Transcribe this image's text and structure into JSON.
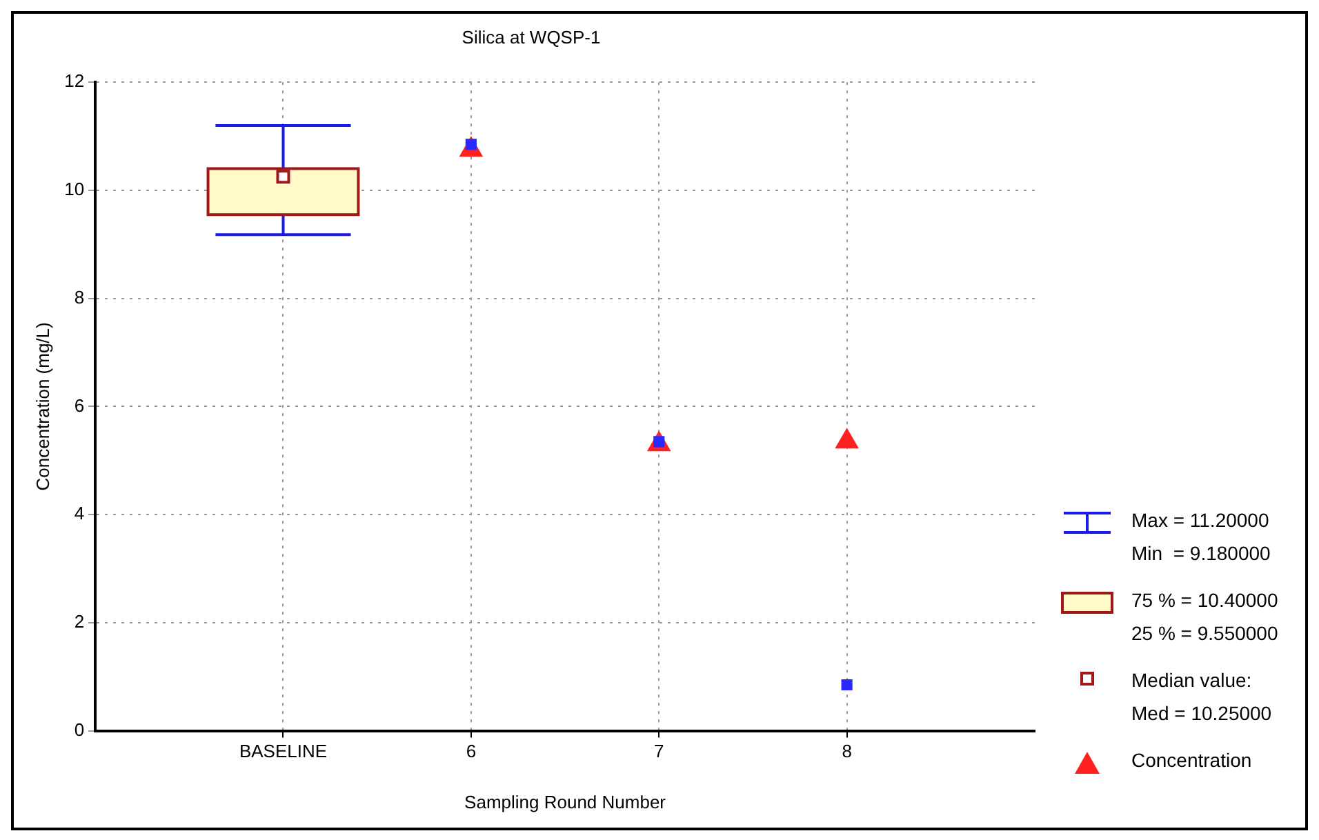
{
  "chart_data": {
    "type": "box",
    "title": "Silica at WQSP-1",
    "xlabel": "Sampling Round Number",
    "ylabel": "Concentration (mg/L)",
    "categories": [
      "BASELINE",
      "6",
      "7",
      "8"
    ],
    "boxes": [
      {
        "low": 9.18,
        "q1": 9.55,
        "median": 10.25,
        "q3": 10.4,
        "high": 11.2
      },
      null,
      null,
      null
    ],
    "series": [
      {
        "type": "scatter",
        "name": "Concentration",
        "color": "#ff2020",
        "marker": "triangle",
        "x": [
          "6",
          "7",
          "8"
        ],
        "values": [
          10.75,
          5.3,
          5.35
        ]
      },
      {
        "type": "scatter",
        "color": "#2a2aff",
        "marker": "square",
        "x": [
          "6",
          "7",
          "8"
        ],
        "values": [
          10.85,
          5.35,
          0.85
        ]
      }
    ],
    "annotations": [
      "Max = 11.20000",
      "Min  = 9.180000",
      "75 % = 10.40000",
      "25 % = 9.550000",
      "Median value:",
      "Med = 10.25000"
    ],
    "ylim": [
      0,
      12
    ],
    "yticks": [
      0,
      2,
      4,
      6,
      8,
      10,
      12
    ],
    "grid": true,
    "legend": "right"
  }
}
